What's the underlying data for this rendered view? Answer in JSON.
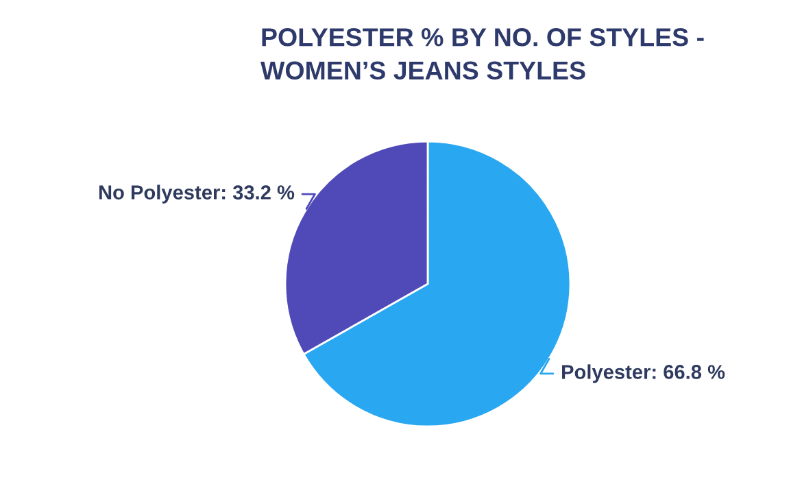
{
  "chart_data": {
    "type": "pie",
    "title": "POLYESTER % BY NO. OF STYLES -\nWOMEN’S JEANS STYLES",
    "categories": [
      "Polyester",
      "No Polyester"
    ],
    "values": [
      66.8,
      33.2
    ],
    "colors": [
      "#29a7f0",
      "#4f4ab8"
    ],
    "value_labels": [
      "66.8 %",
      "33.2 %"
    ],
    "legend": false
  }
}
